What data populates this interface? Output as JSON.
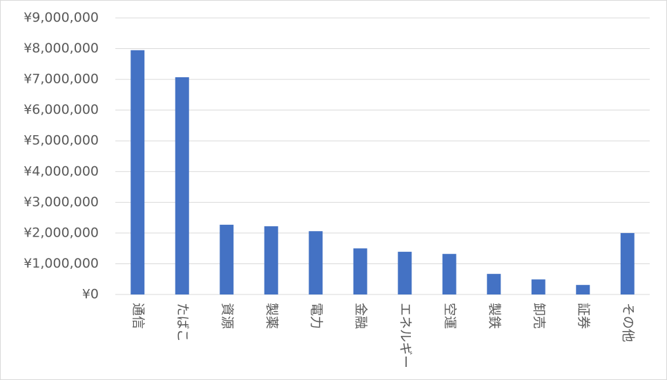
{
  "chart_data": {
    "type": "bar",
    "categories": [
      "通信",
      "たばこ",
      "資源",
      "製薬",
      "電力",
      "金融",
      "エネルギー",
      "空運",
      "製鉄",
      "卸売",
      "証券",
      "その他"
    ],
    "values": [
      7950000,
      7070000,
      2270000,
      2220000,
      2060000,
      1500000,
      1390000,
      1320000,
      670000,
      490000,
      310000,
      2000000
    ],
    "color": "#4472c4",
    "ylim": [
      0,
      9000000
    ],
    "yticks": [
      {
        "value": 0,
        "label": "¥0"
      },
      {
        "value": 1000000,
        "label": "¥1,000,000"
      },
      {
        "value": 2000000,
        "label": "¥2,000,000"
      },
      {
        "value": 3000000,
        "label": "¥3,000,000"
      },
      {
        "value": 4000000,
        "label": "¥4,000,000"
      },
      {
        "value": 5000000,
        "label": "¥5,000,000"
      },
      {
        "value": 6000000,
        "label": "¥6,000,000"
      },
      {
        "value": 7000000,
        "label": "¥7,000,000"
      },
      {
        "value": 8000000,
        "label": "¥8,000,000"
      },
      {
        "value": 9000000,
        "label": "¥9,000,000"
      }
    ],
    "grid": true
  }
}
